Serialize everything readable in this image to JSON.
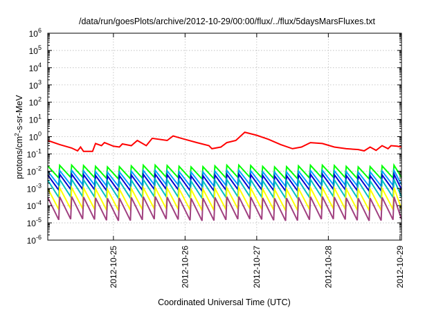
{
  "chart_data": {
    "type": "line",
    "title": "/data/run/goesPlots/archive/2012-10-29/00:00/flux/../flux/5daysMarsFluxes.txt",
    "xlabel": "Coordinated Universal Time (UTC)",
    "ylabel": {
      "base": "protons/cm",
      "sup": "2",
      "rest": "-s-sr-MeV"
    },
    "y_scale": "log",
    "grid": true,
    "xlim": [
      "2012-10-24 02:00",
      "2012-10-29 00:30"
    ],
    "ylim": [
      1e-06,
      1000000.0
    ],
    "x_ticks": [
      "2012-10-25",
      "2012-10-26",
      "2012-10-27",
      "2012-10-28",
      "2012-10-29"
    ],
    "y_ticks": [
      {
        "base": "10",
        "exp": "-6"
      },
      {
        "base": "10",
        "exp": "-5"
      },
      {
        "base": "10",
        "exp": "-4"
      },
      {
        "base": "10",
        "exp": "-3"
      },
      {
        "base": "10",
        "exp": "-2"
      },
      {
        "base": "10",
        "exp": "-1"
      },
      {
        "base": "10",
        "exp": "0"
      },
      {
        "base": "10",
        "exp": "1"
      },
      {
        "base": "10",
        "exp": "2"
      },
      {
        "base": "10",
        "exp": "3"
      },
      {
        "base": "10",
        "exp": "4"
      },
      {
        "base": "10",
        "exp": "5"
      },
      {
        "base": "10",
        "exp": "6"
      }
    ],
    "series": [
      {
        "color": "#ff0000",
        "points": [
          [
            "2012-10-24 02:00",
            0.6
          ],
          [
            "2012-10-24 06:00",
            0.35
          ],
          [
            "2012-10-24 10:00",
            0.22
          ],
          [
            "2012-10-24 12:00",
            0.15
          ],
          [
            "2012-10-24 13:00",
            0.25
          ],
          [
            "2012-10-24 14:00",
            0.14
          ],
          [
            "2012-10-24 17:00",
            0.14
          ],
          [
            "2012-10-24 18:00",
            0.4
          ],
          [
            "2012-10-24 20:00",
            0.3
          ],
          [
            "2012-10-24 21:00",
            0.45
          ],
          [
            "2012-10-25 00:00",
            0.28
          ],
          [
            "2012-10-25 02:00",
            0.25
          ],
          [
            "2012-10-25 03:00",
            0.38
          ],
          [
            "2012-10-25 06:00",
            0.3
          ],
          [
            "2012-10-25 08:00",
            0.6
          ],
          [
            "2012-10-25 11:00",
            0.3
          ],
          [
            "2012-10-25 13:00",
            0.8
          ],
          [
            "2012-10-25 18:00",
            0.6
          ],
          [
            "2012-10-25 20:00",
            1.1
          ],
          [
            "2012-10-26 00:00",
            0.7
          ],
          [
            "2012-10-26 04:00",
            0.45
          ],
          [
            "2012-10-26 08:00",
            0.3
          ],
          [
            "2012-10-26 09:00",
            0.2
          ],
          [
            "2012-10-26 12:00",
            0.25
          ],
          [
            "2012-10-26 14:00",
            0.45
          ],
          [
            "2012-10-26 17:00",
            0.6
          ],
          [
            "2012-10-26 20:00",
            1.8
          ],
          [
            "2012-10-27 00:00",
            1.2
          ],
          [
            "2012-10-27 04:00",
            0.7
          ],
          [
            "2012-10-27 08:00",
            0.35
          ],
          [
            "2012-10-27 12:00",
            0.2
          ],
          [
            "2012-10-27 15:00",
            0.25
          ],
          [
            "2012-10-27 18:00",
            0.45
          ],
          [
            "2012-10-27 22:00",
            0.4
          ],
          [
            "2012-10-28 02:00",
            0.25
          ],
          [
            "2012-10-28 06:00",
            0.2
          ],
          [
            "2012-10-28 10:00",
            0.18
          ],
          [
            "2012-10-28 12:00",
            0.15
          ],
          [
            "2012-10-28 14:00",
            0.25
          ],
          [
            "2012-10-28 16:00",
            0.16
          ],
          [
            "2012-10-28 18:00",
            0.3
          ],
          [
            "2012-10-28 20:00",
            0.2
          ],
          [
            "2012-10-28 21:00",
            0.3
          ],
          [
            "2012-10-28 23:00",
            0.28
          ],
          [
            "2012-10-29 00:30",
            0.25
          ]
        ]
      },
      {
        "color": "#00ff00",
        "sawtooth": {
          "peak": 0.02,
          "trough": 0.004,
          "period_hours": 4,
          "start": "2012-10-24 02:00",
          "end": "2012-10-29 00:30"
        }
      },
      {
        "color": "#00a0ff",
        "sawtooth": {
          "peak": 0.01,
          "trough": 0.0015,
          "period_hours": 4,
          "start": "2012-10-24 02:00",
          "end": "2012-10-29 00:30"
        }
      },
      {
        "color": "#0000d0",
        "sawtooth": {
          "peak": 0.006,
          "trough": 0.0008,
          "period_hours": 4,
          "start": "2012-10-24 02:00",
          "end": "2012-10-29 00:30"
        }
      },
      {
        "color": "#00c0c0",
        "sawtooth": {
          "peak": 0.003,
          "trough": 0.0003,
          "period_hours": 4,
          "start": "2012-10-24 02:00",
          "end": "2012-10-29 00:30"
        }
      },
      {
        "color": "#ffff00",
        "sawtooth": {
          "peak": 0.001,
          "trough": 6e-05,
          "period_hours": 4,
          "start": "2012-10-24 02:00",
          "end": "2012-10-29 00:30"
        }
      },
      {
        "color": "#a04080",
        "sawtooth": {
          "peak": 0.0003,
          "trough": 1.5e-05,
          "period_hours": 4,
          "start": "2012-10-24 02:00",
          "end": "2012-10-29 00:30"
        }
      }
    ]
  }
}
